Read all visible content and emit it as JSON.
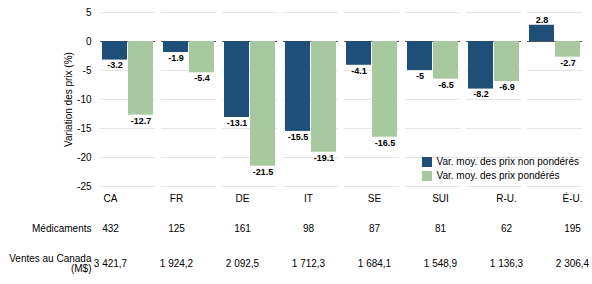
{
  "chart_data": {
    "type": "bar",
    "categories": [
      "CA",
      "FR",
      "DE",
      "IT",
      "SE",
      "SUI",
      "R-U.",
      "É-U."
    ],
    "series": [
      {
        "name": "Var. moy. des prix non pondérés",
        "color": "#1F4E79",
        "values": [
          -3.2,
          -1.9,
          -13.1,
          -15.5,
          -4.1,
          -5.0,
          -8.2,
          2.8
        ]
      },
      {
        "name": "Var. moy. des prix pondérés",
        "color": "#A8C8A0",
        "values": [
          -12.7,
          -5.4,
          -21.5,
          -19.1,
          -16.5,
          -6.5,
          -6.9,
          -2.7
        ]
      }
    ],
    "ylabel": "Variation des prix (%)",
    "ylim": [
      -25,
      5
    ],
    "yticks": [
      5,
      0,
      -5,
      -10,
      -15,
      -20,
      -25
    ],
    "grid": true,
    "legend": "lower right",
    "data_labels": true,
    "table": [
      {
        "name": "Médicaments",
        "values": [
          432,
          125,
          161,
          98,
          87,
          81,
          62,
          195
        ]
      },
      {
        "name": "Ventes au Canada\n(M$)",
        "values": [
          3421.7,
          1924.2,
          2092.5,
          1712.3,
          1684.1,
          1548.9,
          1136.3,
          2306.4
        ],
        "value_labels": [
          "3 421,7",
          "1 924,2",
          "2 092,5",
          "1 712,3",
          "1 684,1",
          "1 548,9",
          "1 136,3",
          "2 306,4"
        ]
      }
    ]
  }
}
